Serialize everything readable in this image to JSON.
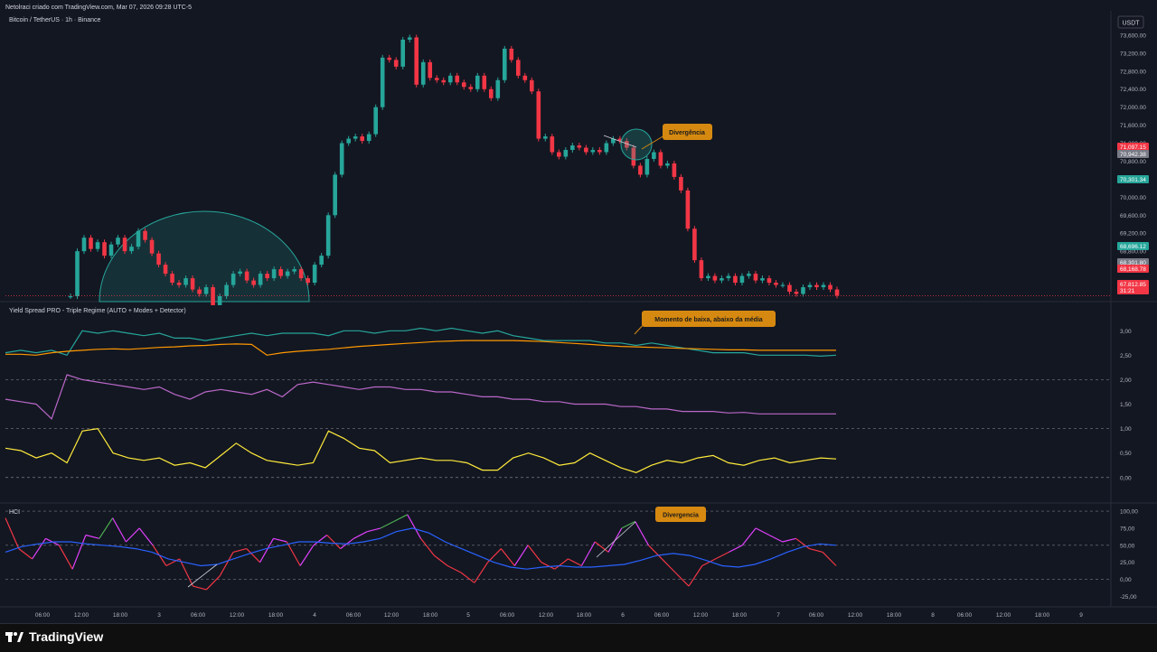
{
  "header": {
    "caption": "Netolraci criado com TradingView.com, Mar 07, 2026 09:28 UTC-5",
    "symbol": "Bitcoin / TetherUS · 1h · Binance",
    "currency_button": "USDT"
  },
  "indicators": {
    "yield_title": "Yield Spread PRO - Triple Regime (AUTO + Modes + Detector)",
    "hci_title": "HCI"
  },
  "annotations": {
    "divergence_price": "Divergência",
    "momentum": "Momento de baixa, abaixo da média",
    "divergence_hci": "Divergencia"
  },
  "footer": {
    "logo_text": "TradingView"
  },
  "colors": {
    "background": "#131722",
    "up": "#26a69a",
    "down": "#f23645",
    "teal_line": "#26a69a",
    "orange_line": "#ff9800",
    "purple_line": "#ba68c8",
    "yellow_line": "#ffeb3b",
    "blue_line": "#2962ff",
    "annotation": "#d68910"
  },
  "chart_data": [
    {
      "type": "candlestick",
      "title": "Bitcoin / TetherUS · 1h · Binance",
      "ylim": [
        67700,
        74100
      ],
      "y_ticks": [
        "73,600.00",
        "73,200.00",
        "72,800.00",
        "72,400.00",
        "72,000.00",
        "71,600.00",
        "71,200.00",
        "70,800.00",
        "70,400.00",
        "70,000.00",
        "69,600.00",
        "69,200.00",
        "68,800.00",
        "68,400.00",
        "68,000.00"
      ],
      "price_tags": [
        {
          "label": "71,097.15",
          "color": "#f23645"
        },
        {
          "label": "70,942.38",
          "color": "#787b86"
        },
        {
          "label": "70,301.34",
          "color": "#26a69a"
        },
        {
          "label": "68,696.12",
          "color": "#26a69a"
        },
        {
          "label": "68,301.80",
          "color": "#787b86"
        },
        {
          "label": "68,168.78",
          "color": "#f23645"
        },
        {
          "label": "67,812.85",
          "color": "#f23645"
        },
        {
          "label": "31:21",
          "color": "#f23645"
        }
      ],
      "last_price": 67812.85,
      "closes": [
        67800,
        68800,
        69100,
        68850,
        69000,
        68700,
        68950,
        69100,
        68800,
        68900,
        69250,
        69050,
        68750,
        68500,
        68300,
        68100,
        68050,
        68200,
        67950,
        67850,
        68000,
        67600,
        67800,
        68050,
        68300,
        68350,
        68150,
        68050,
        68300,
        68200,
        68400,
        68250,
        68350,
        68400,
        68200,
        68100,
        68500,
        68700,
        69600,
        70500,
        71200,
        71300,
        71350,
        71250,
        71400,
        72000,
        73100,
        73050,
        72900,
        73500,
        73550,
        72500,
        73000,
        72650,
        72600,
        72550,
        72700,
        72550,
        72450,
        72400,
        72700,
        72400,
        72200,
        72600,
        73300,
        73050,
        72700,
        72600,
        72350,
        71300,
        71350,
        71000,
        70900,
        71050,
        71150,
        71100,
        71000,
        71050,
        71000,
        71200,
        71300,
        71250,
        71100,
        70700,
        70500,
        70850,
        71000,
        70700,
        70750,
        70450,
        70150,
        69300,
        68600,
        68200,
        68250,
        68150,
        68200,
        68250,
        68100,
        68250,
        68300,
        68150,
        68200,
        68100,
        68050,
        68050,
        67900,
        67850,
        68000,
        68050,
        68000,
        68050,
        67950,
        67812
      ]
    },
    {
      "type": "line",
      "title": "Yield Spread PRO - Triple Regime (AUTO + Modes + Detector)",
      "ylim": [
        -0.3,
        3.3
      ],
      "y_ticks": [
        "3,00",
        "2,50",
        "2,00",
        "1,50",
        "1,00",
        "0,50",
        "0,00"
      ],
      "series": [
        {
          "color": "#26a69a",
          "values": [
            2.55,
            2.6,
            2.55,
            2.6,
            2.5,
            3.0,
            2.95,
            3.0,
            2.95,
            2.9,
            2.95,
            2.85,
            2.85,
            2.8,
            2.85,
            2.9,
            2.95,
            2.9,
            2.95,
            2.95,
            2.95,
            2.9,
            3.0,
            3.0,
            2.95,
            3.0,
            3.0,
            3.05,
            3.0,
            3.05,
            3.0,
            2.95,
            3.0,
            2.9,
            2.85,
            2.8,
            2.8,
            2.8,
            2.8,
            2.75,
            2.75,
            2.7,
            2.75,
            2.7,
            2.65,
            2.6,
            2.55,
            2.55,
            2.55,
            2.5,
            2.5,
            2.5,
            2.5,
            2.48,
            2.5
          ]
        },
        {
          "color": "#ff9800",
          "values": [
            2.52,
            2.52,
            2.5,
            2.55,
            2.58,
            2.6,
            2.62,
            2.63,
            2.62,
            2.64,
            2.66,
            2.67,
            2.69,
            2.7,
            2.72,
            2.73,
            2.72,
            2.5,
            2.55,
            2.58,
            2.6,
            2.62,
            2.65,
            2.68,
            2.7,
            2.72,
            2.74,
            2.76,
            2.78,
            2.79,
            2.8,
            2.8,
            2.8,
            2.8,
            2.79,
            2.78,
            2.76,
            2.74,
            2.72,
            2.7,
            2.68,
            2.67,
            2.66,
            2.65,
            2.64,
            2.63,
            2.62,
            2.61,
            2.61,
            2.6,
            2.6,
            2.6,
            2.6,
            2.6,
            2.6
          ]
        },
        {
          "color": "#ba68c8",
          "values": [
            1.6,
            1.55,
            1.5,
            1.2,
            2.1,
            2.0,
            1.95,
            1.9,
            1.85,
            1.8,
            1.85,
            1.7,
            1.6,
            1.75,
            1.8,
            1.75,
            1.7,
            1.8,
            1.65,
            1.9,
            1.95,
            1.9,
            1.85,
            1.8,
            1.85,
            1.85,
            1.8,
            1.8,
            1.75,
            1.75,
            1.7,
            1.65,
            1.65,
            1.6,
            1.6,
            1.55,
            1.55,
            1.5,
            1.5,
            1.5,
            1.45,
            1.45,
            1.4,
            1.4,
            1.35,
            1.35,
            1.35,
            1.32,
            1.33,
            1.3,
            1.3,
            1.3,
            1.3,
            1.3,
            1.3
          ]
        },
        {
          "color": "#ffeb3b",
          "values": [
            0.6,
            0.55,
            0.4,
            0.5,
            0.3,
            0.95,
            1.0,
            0.5,
            0.4,
            0.35,
            0.4,
            0.25,
            0.3,
            0.2,
            0.45,
            0.7,
            0.5,
            0.35,
            0.3,
            0.25,
            0.3,
            0.95,
            0.8,
            0.6,
            0.55,
            0.3,
            0.35,
            0.4,
            0.35,
            0.35,
            0.3,
            0.15,
            0.15,
            0.4,
            0.5,
            0.4,
            0.25,
            0.3,
            0.5,
            0.35,
            0.2,
            0.1,
            0.25,
            0.35,
            0.3,
            0.4,
            0.45,
            0.3,
            0.25,
            0.35,
            0.4,
            0.3,
            0.35,
            0.4,
            0.38
          ]
        }
      ]
    },
    {
      "type": "line",
      "title": "HCI",
      "ylim": [
        -35,
        108
      ],
      "y_ticks": [
        "100,00",
        "75,00",
        "50,00",
        "25,00",
        "0,00",
        "-25,00"
      ],
      "series": [
        {
          "color": "#f23645",
          "values": [
            90,
            45,
            30,
            60,
            50,
            15,
            65,
            60,
            90,
            55,
            75,
            50,
            20,
            30,
            -10,
            -15,
            5,
            40,
            45,
            25,
            60,
            55,
            20,
            50,
            65,
            45,
            60,
            70,
            75,
            85,
            95,
            60,
            35,
            20,
            10,
            -5,
            25,
            45,
            20,
            50,
            25,
            15,
            30,
            20,
            55,
            40,
            75,
            85,
            50,
            30,
            10,
            -10,
            20,
            30,
            40,
            50,
            75,
            65,
            55,
            60,
            45,
            40,
            20
          ]
        },
        {
          "color": "#2962ff",
          "values": [
            40,
            48,
            52,
            55,
            55,
            52,
            50,
            48,
            45,
            40,
            30,
            25,
            20,
            22,
            30,
            38,
            45,
            50,
            55,
            55,
            53,
            52,
            55,
            60,
            70,
            75,
            68,
            55,
            45,
            35,
            25,
            18,
            15,
            18,
            20,
            18,
            18,
            20,
            22,
            28,
            35,
            38,
            35,
            28,
            20,
            18,
            22,
            30,
            40,
            48,
            52,
            50
          ]
        }
      ]
    }
  ],
  "x_axis": {
    "labels": [
      "06:00",
      "12:00",
      "18:00",
      "3",
      "06:00",
      "12:00",
      "18:00",
      "4",
      "06:00",
      "12:00",
      "18:00",
      "5",
      "06:00",
      "12:00",
      "18:00",
      "6",
      "06:00",
      "12:00",
      "18:00",
      "7",
      "06:00",
      "12:00",
      "18:00",
      "8",
      "06:00",
      "12:00",
      "18:00",
      "9"
    ]
  }
}
